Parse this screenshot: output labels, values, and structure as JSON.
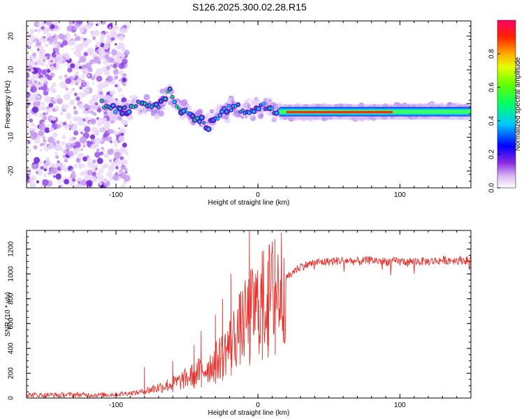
{
  "title": "S126.2025.300.02.28.R15",
  "chart_data": [
    {
      "type": "heatmap",
      "title": "",
      "xlabel": "Height of straight line (km)",
      "ylabel": "Frequency (Hz)",
      "xlim": [
        -163,
        150
      ],
      "ylim": [
        -25,
        24.5
      ],
      "xticks": [
        -100,
        0,
        100
      ],
      "yticks": [
        -20,
        -10,
        0,
        10,
        20
      ],
      "colorbar": {
        "label": "Normalized spectral amplitude",
        "range": [
          0,
          1
        ],
        "ticks": [
          "0.0",
          "0.2",
          "0.4",
          "0.6",
          "0.8"
        ],
        "colormap": "rainbow"
      },
      "frequency_trace": {
        "x": [
          -110,
          -100,
          -92,
          -85,
          -80,
          -75,
          -70,
          -65,
          -62,
          -58,
          -55,
          -50,
          -45,
          -40,
          -35,
          -30,
          -25,
          -20,
          -15,
          -10,
          -5,
          0,
          5,
          10,
          15,
          20,
          40,
          60,
          80,
          100,
          120,
          150
        ],
        "y": [
          0,
          -2,
          -2,
          0,
          -1,
          -1,
          -1,
          2,
          4,
          -1,
          -2,
          -2,
          -4,
          -5,
          -7,
          -4,
          -3,
          -1,
          -1,
          -2,
          -2,
          -1,
          -1,
          -2,
          -2,
          -2.5,
          -2.5,
          -2.5,
          -2.5,
          -2.3,
          -2,
          -2
        ],
        "peak_amplitude_region_km": [
          20,
          95
        ]
      },
      "noise_region_km": [
        -163,
        -100
      ]
    },
    {
      "type": "line",
      "title": "",
      "xlabel": "Height of straight line (km)",
      "ylabel": "SNR (10 * v/v)",
      "xlim": [
        -163,
        150
      ],
      "ylim": [
        0,
        1350
      ],
      "xticks": [
        -100,
        0,
        100
      ],
      "yticks": [
        0,
        200,
        400,
        600,
        800,
        1000,
        1200
      ],
      "series": [
        {
          "color": "#e8312b",
          "x": [
            -163,
            -150,
            -140,
            -130,
            -120,
            -110,
            -100,
            -90,
            -85,
            -80,
            -75,
            -70,
            -65,
            -60,
            -55,
            -50,
            -45,
            -40,
            -35,
            -30,
            -25,
            -20,
            -15,
            -10,
            -5,
            0,
            5,
            10,
            15,
            20,
            25,
            30,
            40,
            50,
            60,
            70,
            80,
            90,
            100,
            110,
            120,
            130,
            140,
            150
          ],
          "values": [
            25,
            25,
            25,
            28,
            25,
            25,
            30,
            40,
            45,
            55,
            70,
            85,
            100,
            115,
            135,
            160,
            190,
            220,
            250,
            290,
            350,
            430,
            520,
            600,
            680,
            740,
            790,
            850,
            900,
            960,
            1020,
            1060,
            1090,
            1100,
            1110,
            1100,
            1110,
            1100,
            1100,
            1100,
            1100,
            1110,
            1110,
            1110
          ],
          "spikes": [
            {
              "x": -80,
              "y": 250
            },
            {
              "x": -60,
              "y": 300
            },
            {
              "x": -45,
              "y": 430
            },
            {
              "x": -40,
              "y": 540
            },
            {
              "x": -30,
              "y": 670
            },
            {
              "x": -25,
              "y": 800
            },
            {
              "x": -19,
              "y": 1000
            },
            {
              "x": -6,
              "y": 1350
            },
            {
              "x": 3,
              "y": 1180
            },
            {
              "x": 7,
              "y": 1100
            },
            {
              "x": 12,
              "y": 1280
            }
          ]
        }
      ]
    }
  ]
}
